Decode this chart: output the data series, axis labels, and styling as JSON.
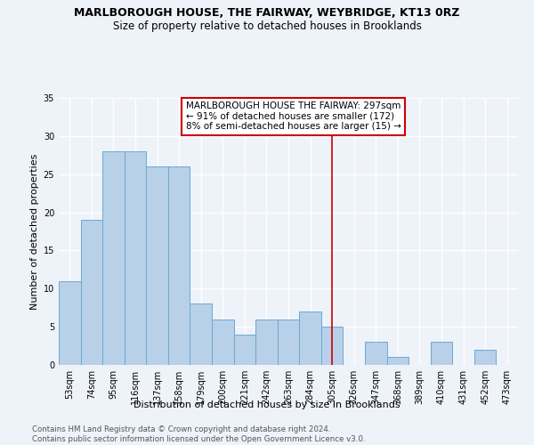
{
  "title": "MARLBOROUGH HOUSE, THE FAIRWAY, WEYBRIDGE, KT13 0RZ",
  "subtitle": "Size of property relative to detached houses in Brooklands",
  "xlabel": "Distribution of detached houses by size in Brooklands",
  "ylabel": "Number of detached properties",
  "categories": [
    "53sqm",
    "74sqm",
    "95sqm",
    "116sqm",
    "137sqm",
    "158sqm",
    "179sqm",
    "200sqm",
    "221sqm",
    "242sqm",
    "263sqm",
    "284sqm",
    "305sqm",
    "326sqm",
    "347sqm",
    "368sqm",
    "389sqm",
    "410sqm",
    "431sqm",
    "452sqm",
    "473sqm"
  ],
  "values": [
    11,
    19,
    28,
    28,
    26,
    26,
    8,
    6,
    4,
    6,
    6,
    7,
    5,
    0,
    3,
    1,
    0,
    3,
    0,
    2,
    0
  ],
  "bar_color": "#b8d0e8",
  "bar_edge_color": "#6aaad4",
  "vline_x": 12.0,
  "vline_color": "#cc0000",
  "annotation_text": "MARLBOROUGH HOUSE THE FAIRWAY: 297sqm\n← 91% of detached houses are smaller (172)\n8% of semi-detached houses are larger (15) →",
  "annotation_box_color": "#cc0000",
  "ylim": [
    0,
    35
  ],
  "yticks": [
    0,
    5,
    10,
    15,
    20,
    25,
    30,
    35
  ],
  "footer_text": "Contains HM Land Registry data © Crown copyright and database right 2024.\nContains public sector information licensed under the Open Government Licence v3.0.",
  "background_color": "#eef2f9",
  "grid_color": "#ffffff",
  "title_fontsize": 9,
  "subtitle_fontsize": 8.5,
  "axis_label_fontsize": 8,
  "tick_fontsize": 7,
  "annotation_fontsize": 7.5,
  "footer_fontsize": 6.2
}
